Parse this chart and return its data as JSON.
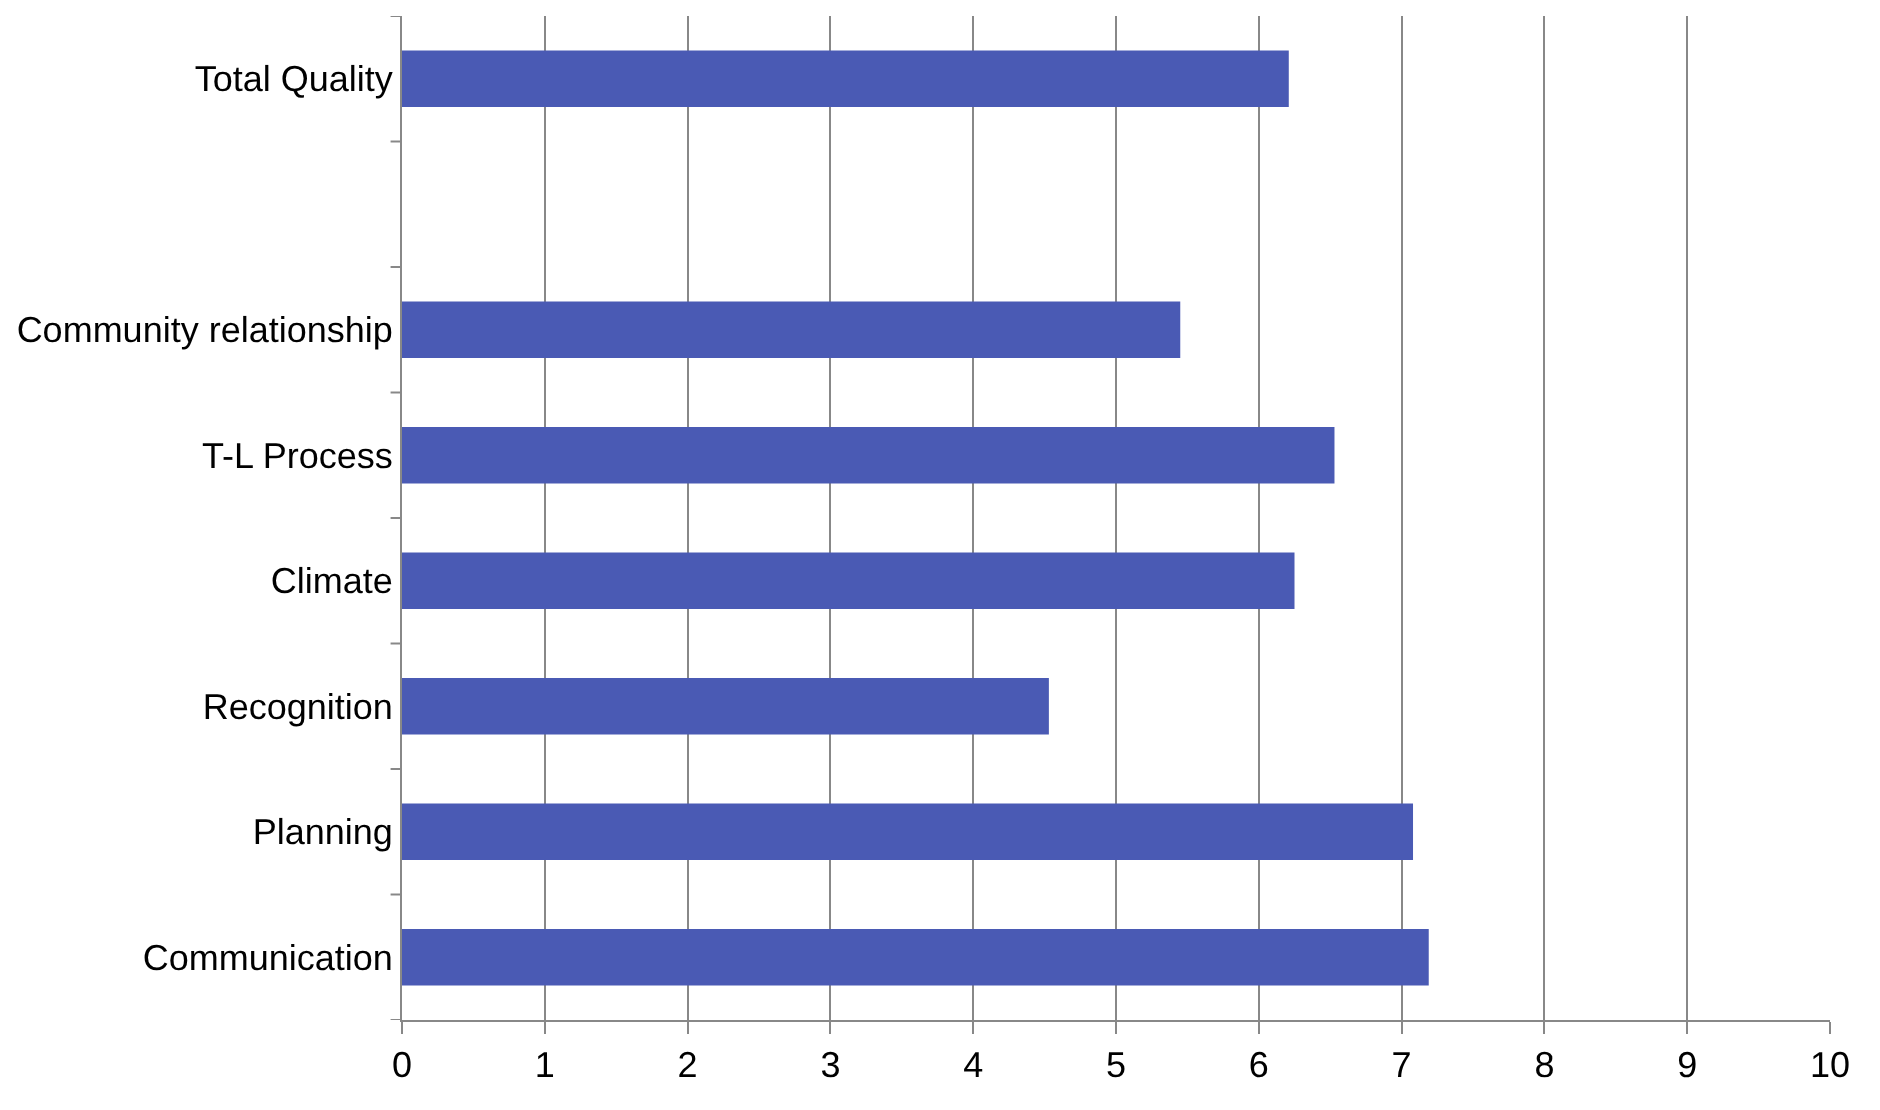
{
  "chart_data": {
    "type": "bar",
    "orientation": "horizontal",
    "categories": [
      "Total Quality",
      null,
      "Community relationship",
      "T-L Process",
      "Climate",
      "Recognition",
      "Planning",
      "Communication"
    ],
    "values": [
      6.21,
      null,
      5.45,
      6.53,
      6.25,
      4.53,
      7.08,
      7.19
    ],
    "color": "#4a5ab4",
    "xlim": [
      0,
      10
    ],
    "xticks": [
      0,
      1,
      2,
      3,
      4,
      5,
      6,
      7,
      8,
      9,
      10
    ],
    "grid": "x"
  }
}
